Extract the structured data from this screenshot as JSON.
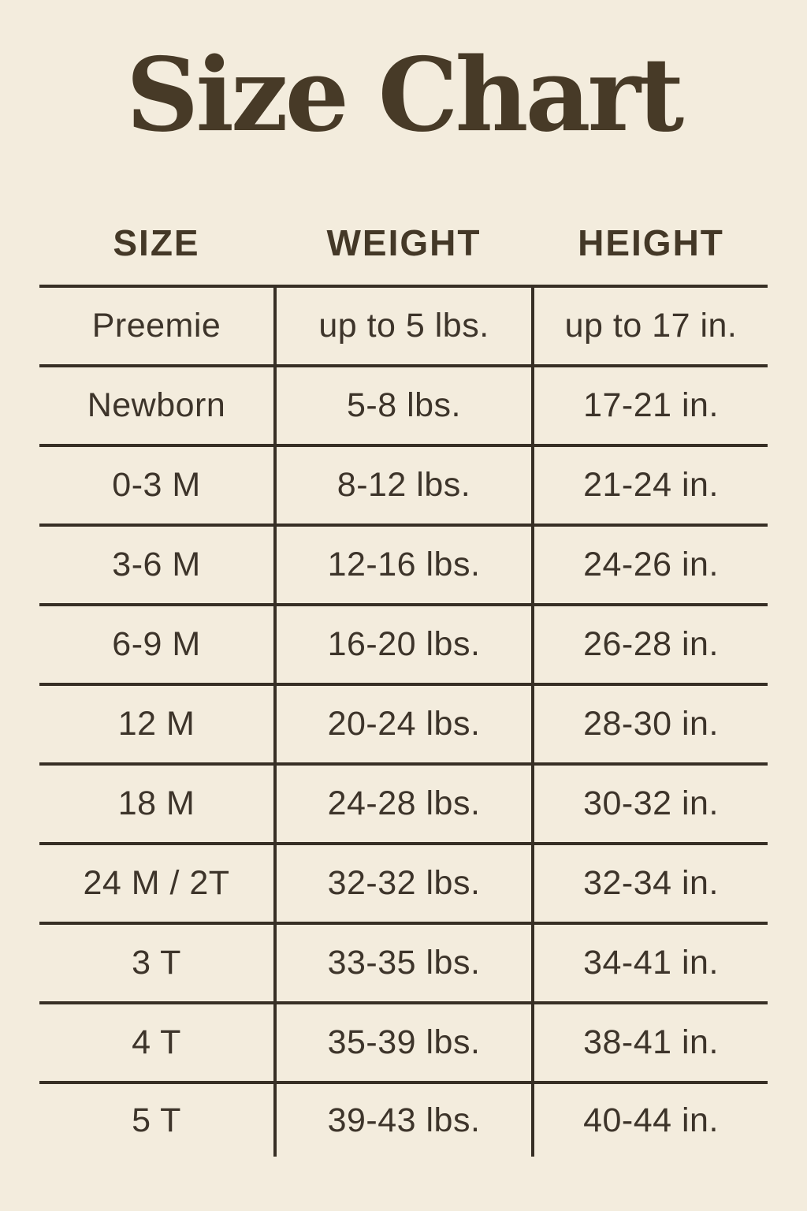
{
  "title": "Size Chart",
  "colors": {
    "background": "#f3ecdd",
    "title_text": "#473a27",
    "body_text": "#3d342a",
    "grid_lines": "#372f25"
  },
  "chart_data": {
    "type": "table",
    "title": "Size Chart",
    "columns": [
      "SIZE",
      "WEIGHT",
      "HEIGHT"
    ],
    "rows": [
      [
        "Preemie",
        "up to 5 lbs.",
        "up to 17 in."
      ],
      [
        "Newborn",
        "5-8 lbs.",
        "17-21 in."
      ],
      [
        "0-3 M",
        "8-12 lbs.",
        "21-24 in."
      ],
      [
        "3-6 M",
        "12-16 lbs.",
        "24-26 in."
      ],
      [
        "6-9 M",
        "16-20 lbs.",
        "26-28 in."
      ],
      [
        "12 M",
        "20-24 lbs.",
        "28-30 in."
      ],
      [
        "18 M",
        "24-28 lbs.",
        "30-32 in."
      ],
      [
        "24 M / 2T",
        "32-32 lbs.",
        "32-34 in."
      ],
      [
        "3 T",
        "33-35 lbs.",
        "34-41 in."
      ],
      [
        "4 T",
        "35-39 lbs.",
        "38-41 in."
      ],
      [
        "5 T",
        "39-43 lbs.",
        "40-44 in."
      ]
    ],
    "layout": {
      "grid": "horizontal separators between all rows; vertical separators around middle column only; no outer side/bottom border"
    }
  }
}
